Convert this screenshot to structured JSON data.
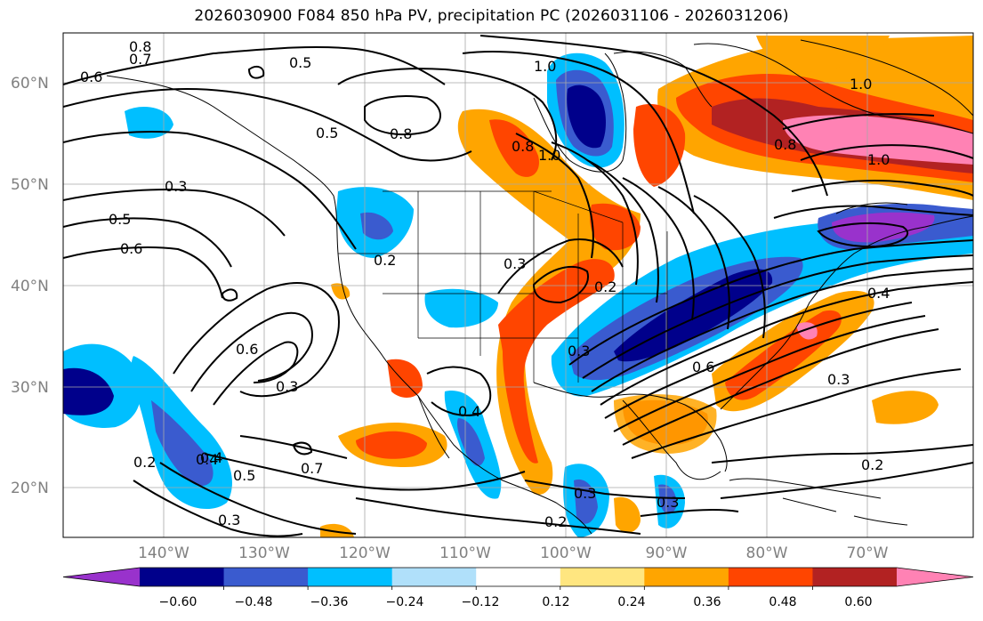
{
  "title": "2026030900 F084 850 hPa PV, precipitation PC (2026031106 - 2026031206)",
  "map": {
    "lat_labels": [
      "60°N",
      "50°N",
      "40°N",
      "30°N",
      "20°N"
    ],
    "lon_labels": [
      "140°W",
      "130°W",
      "120°W",
      "110°W",
      "100°W",
      "90°W",
      "80°W",
      "70°W"
    ],
    "contour_labels": [
      "0.8",
      "0.7",
      "0.5",
      "0.6",
      "1.0",
      "0.5",
      "0.8",
      "0.8",
      "1.0",
      "1.0",
      "0.3",
      "0.5",
      "0.6",
      "0.2",
      "0.3",
      "0.2",
      "0.6",
      "0.3",
      "0.4",
      "0.4",
      "0.7",
      "0.5",
      "0.4",
      "0.2",
      "0.3",
      "0.3",
      "0.2",
      "0.3",
      "0.8",
      "0.6",
      "0.3",
      "0.4",
      "0.3",
      "0.2",
      "1.0"
    ]
  },
  "colorbar": {
    "colors": [
      "#9932cc",
      "#00008b",
      "#3a5bcf",
      "#00bfff",
      "#b0e0fa",
      "#ffffff",
      "#ffe680",
      "#ffa500",
      "#ff4500",
      "#b22222",
      "#ff82b4"
    ],
    "tick_labels": [
      "−0.60",
      "−0.48",
      "−0.36",
      "−0.24",
      "−0.12",
      "0.12",
      "0.24",
      "0.36",
      "0.48",
      "0.60"
    ]
  }
}
